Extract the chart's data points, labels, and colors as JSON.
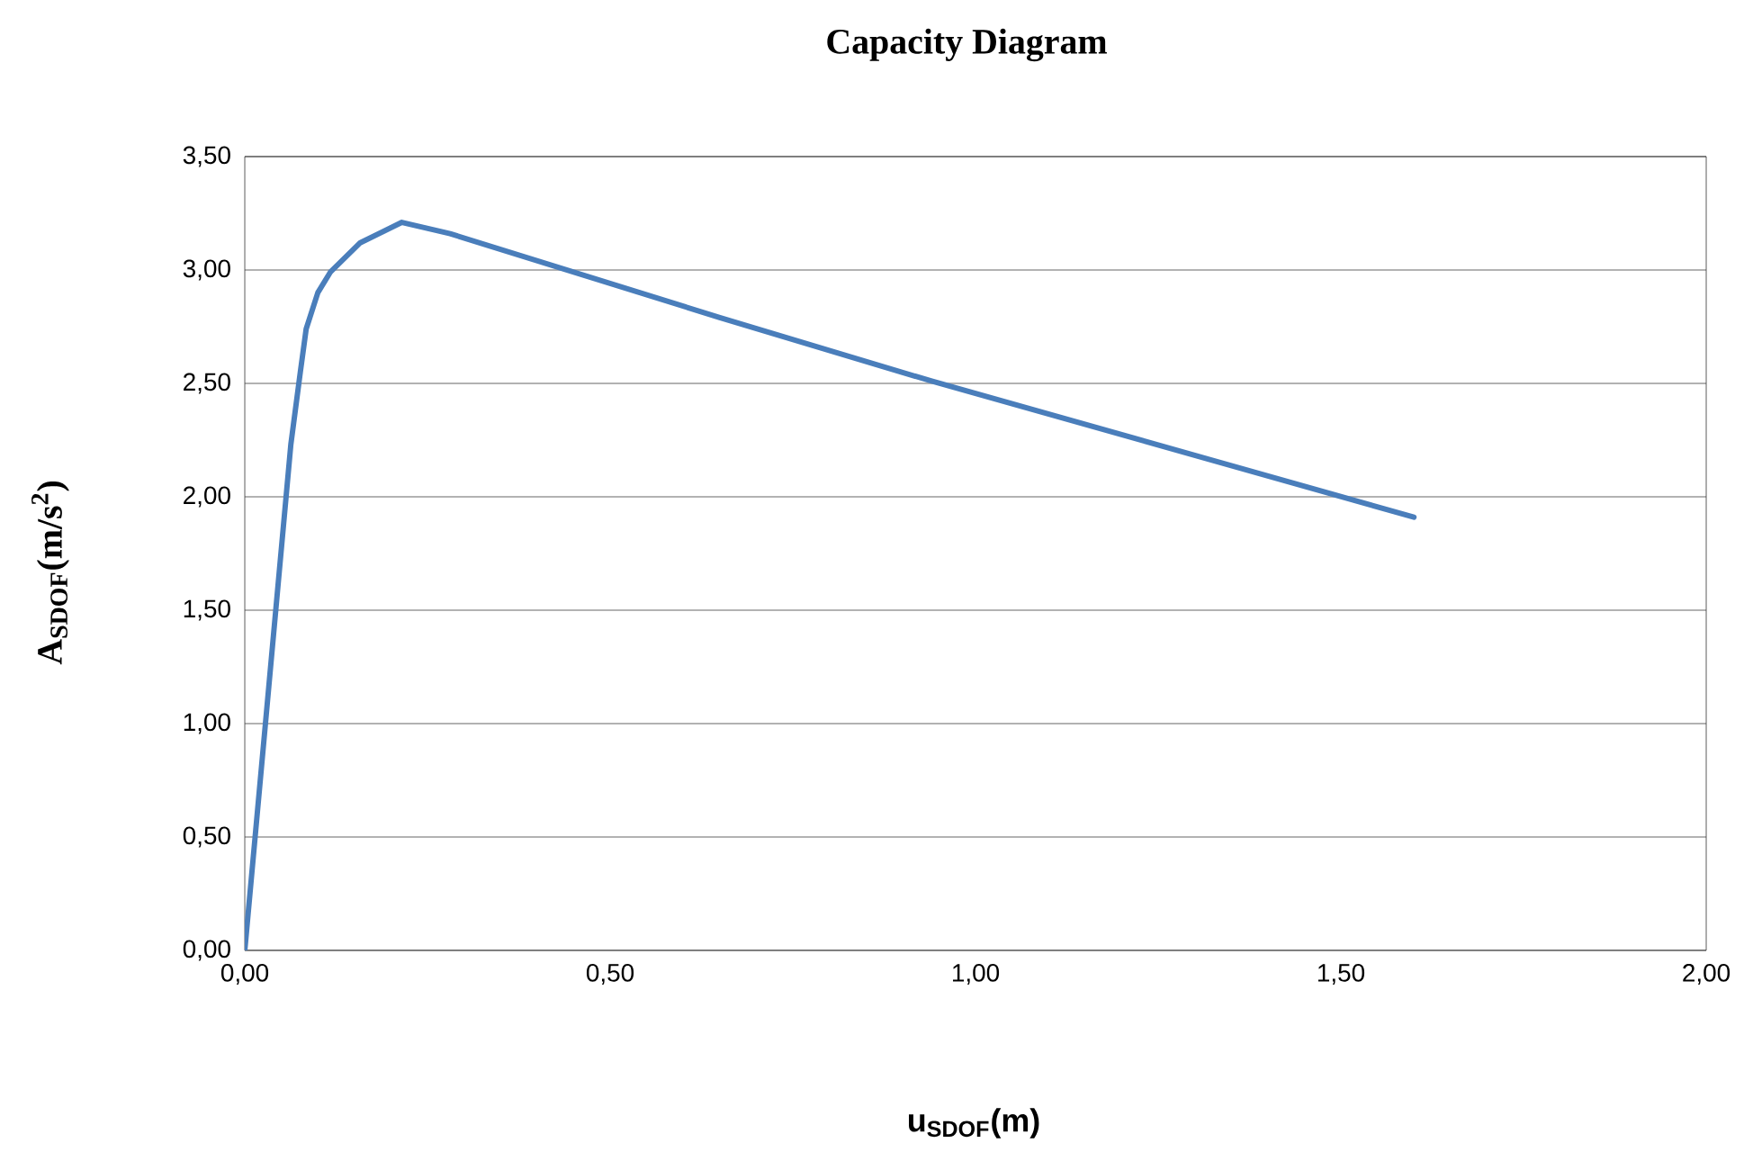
{
  "chart_data": {
    "type": "line",
    "title": "Capacity Diagram",
    "xlabel": "u$_{SDOF}$(m)",
    "ylabel": "A$_{SDOF}$(m/s$^{2}$)",
    "x": [
      0,
      0.063,
      0.076,
      0.084,
      0.1,
      0.117,
      0.158,
      0.215,
      0.281,
      0.65,
      0.94,
      1.6
    ],
    "series": [
      {
        "color": "#4a7ebb",
        "values": [
          0,
          2.23,
          2.55,
          2.74,
          2.9,
          2.99,
          3.12,
          3.21,
          3.16,
          2.79,
          2.51,
          1.91
        ]
      }
    ],
    "xlim": [
      0,
      2
    ],
    "ylim": [
      0,
      3.5
    ],
    "xticks": [
      {
        "value": 0,
        "label": "0,00"
      },
      {
        "value": 0.5,
        "label": "0,50"
      },
      {
        "value": 1,
        "label": "1,00"
      },
      {
        "value": 1.5,
        "label": "1,50"
      },
      {
        "value": 2,
        "label": "2,00"
      }
    ],
    "yticks": [
      {
        "value": 0,
        "label": "0,00"
      },
      {
        "value": 0.5,
        "label": "0,50"
      },
      {
        "value": 1,
        "label": "1,00"
      },
      {
        "value": 1.5,
        "label": "1,50"
      },
      {
        "value": 2,
        "label": "2,00"
      },
      {
        "value": 2.5,
        "label": "2,50"
      },
      {
        "value": 3,
        "label": "3,00"
      },
      {
        "value": 3.5,
        "label": "3,50"
      }
    ],
    "grid": "y",
    "marker": "none",
    "line_style": "solid"
  }
}
